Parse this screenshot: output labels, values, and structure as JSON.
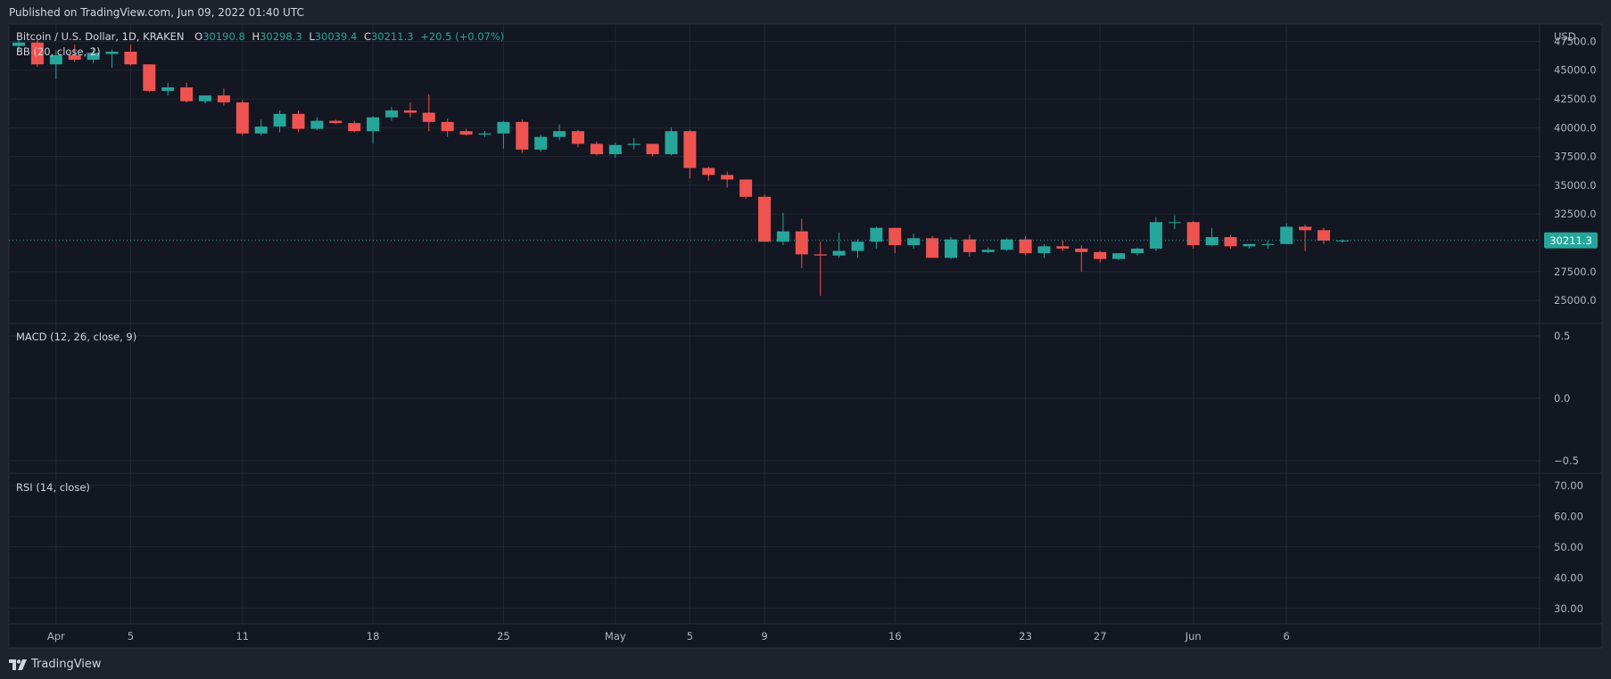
{
  "header": {
    "published": "Published on TradingView.com, Jun 09, 2022 01:40 UTC"
  },
  "legend": {
    "symbol": "Bitcoin / U.S. Dollar, 1D, KRAKEN",
    "o_label": "O",
    "o": "30190.8",
    "h_label": "H",
    "h": "30298.3",
    "l_label": "L",
    "l": "30039.4",
    "c_label": "C",
    "c": "30211.3",
    "change": "+20.5 (+0.07%)",
    "bb": "BB (20, close, 2)",
    "macd": "MACD (12, 26, close, 9)",
    "rsi": "RSI (14, close)"
  },
  "footer": {
    "brand": "TradingView",
    "brand_icon": "tradingview-logo-icon"
  },
  "colors": {
    "up": "#26a69a",
    "down": "#ef5350",
    "background": "#131722",
    "frame": "#1e222d",
    "grid": "#232733",
    "text": "#d1d4dc"
  },
  "chart_data": {
    "type": "candlestick",
    "currency": "USD",
    "last_price_label": "30211.3",
    "last_price": 30211.3,
    "price_axis": {
      "ticks": [
        "47500.0",
        "45000.0",
        "42500.0",
        "40000.0",
        "37500.0",
        "35000.0",
        "32500.0",
        "27500.0",
        "25000.0"
      ],
      "range": [
        23000,
        49000
      ]
    },
    "macd_axis": {
      "ticks": [
        "0.5",
        "0.0",
        "−0.5"
      ],
      "range": [
        -0.6,
        0.6
      ]
    },
    "rsi_axis": {
      "ticks": [
        "70.00",
        "60.00",
        "50.00",
        "40.00",
        "30.00"
      ],
      "range": [
        25,
        74
      ]
    },
    "x_labels": [
      "Apr",
      "5",
      "11",
      "18",
      "25",
      "May",
      "5",
      "9",
      "16",
      "23",
      "27",
      "Jun",
      "6"
    ],
    "x_label_dates": [
      "2022-04-01",
      "2022-04-05",
      "2022-04-11",
      "2022-04-18",
      "2022-04-25",
      "2022-05-01",
      "2022-05-05",
      "2022-05-09",
      "2022-05-16",
      "2022-05-23",
      "2022-05-27",
      "2022-06-01",
      "2022-06-06"
    ],
    "first_date": "2022-03-30",
    "candles": [
      {
        "d": "2022-03-30",
        "o": 47100,
        "h": 47700,
        "l": 46600,
        "c": 47400
      },
      {
        "d": "2022-03-31",
        "o": 47400,
        "h": 47600,
        "l": 45300,
        "c": 45500
      },
      {
        "d": "2022-04-01",
        "o": 45500,
        "h": 46700,
        "l": 44200,
        "c": 46300
      },
      {
        "d": "2022-04-02",
        "o": 46300,
        "h": 47200,
        "l": 45700,
        "c": 45900
      },
      {
        "d": "2022-04-03",
        "o": 45900,
        "h": 47000,
        "l": 45600,
        "c": 46500
      },
      {
        "d": "2022-04-04",
        "o": 46400,
        "h": 46800,
        "l": 45200,
        "c": 46600
      },
      {
        "d": "2022-04-05",
        "o": 46600,
        "h": 47200,
        "l": 45400,
        "c": 45500
      },
      {
        "d": "2022-04-06",
        "o": 45500,
        "h": 45500,
        "l": 43100,
        "c": 43200
      },
      {
        "d": "2022-04-07",
        "o": 43200,
        "h": 43900,
        "l": 42800,
        "c": 43500
      },
      {
        "d": "2022-04-08",
        "o": 43500,
        "h": 43900,
        "l": 42200,
        "c": 42300
      },
      {
        "d": "2022-04-09",
        "o": 42300,
        "h": 42800,
        "l": 42100,
        "c": 42800
      },
      {
        "d": "2022-04-10",
        "o": 42800,
        "h": 43400,
        "l": 41900,
        "c": 42200
      },
      {
        "d": "2022-04-11",
        "o": 42200,
        "h": 42400,
        "l": 39300,
        "c": 39500
      },
      {
        "d": "2022-04-12",
        "o": 39500,
        "h": 40700,
        "l": 39300,
        "c": 40100
      },
      {
        "d": "2022-04-13",
        "o": 40100,
        "h": 41500,
        "l": 39600,
        "c": 41200
      },
      {
        "d": "2022-04-14",
        "o": 41200,
        "h": 41500,
        "l": 39600,
        "c": 39900
      },
      {
        "d": "2022-04-15",
        "o": 39900,
        "h": 40900,
        "l": 39800,
        "c": 40600
      },
      {
        "d": "2022-04-16",
        "o": 40600,
        "h": 40700,
        "l": 40300,
        "c": 40400
      },
      {
        "d": "2022-04-17",
        "o": 40400,
        "h": 40600,
        "l": 39600,
        "c": 39700
      },
      {
        "d": "2022-04-18",
        "o": 39700,
        "h": 41000,
        "l": 38600,
        "c": 40900
      },
      {
        "d": "2022-04-19",
        "o": 40900,
        "h": 41800,
        "l": 40600,
        "c": 41500
      },
      {
        "d": "2022-04-20",
        "o": 41500,
        "h": 42200,
        "l": 40900,
        "c": 41300
      },
      {
        "d": "2022-04-21",
        "o": 41300,
        "h": 42900,
        "l": 39700,
        "c": 40500
      },
      {
        "d": "2022-04-22",
        "o": 40500,
        "h": 40800,
        "l": 39200,
        "c": 39700
      },
      {
        "d": "2022-04-23",
        "o": 39700,
        "h": 39900,
        "l": 39300,
        "c": 39400
      },
      {
        "d": "2022-04-24",
        "o": 39400,
        "h": 39700,
        "l": 39200,
        "c": 39500
      },
      {
        "d": "2022-04-25",
        "o": 39500,
        "h": 40600,
        "l": 38200,
        "c": 40500
      },
      {
        "d": "2022-04-26",
        "o": 40500,
        "h": 40700,
        "l": 37800,
        "c": 38100
      },
      {
        "d": "2022-04-27",
        "o": 38100,
        "h": 39400,
        "l": 37900,
        "c": 39200
      },
      {
        "d": "2022-04-28",
        "o": 39200,
        "h": 40300,
        "l": 38900,
        "c": 39700
      },
      {
        "d": "2022-04-29",
        "o": 39700,
        "h": 39800,
        "l": 38300,
        "c": 38600
      },
      {
        "d": "2022-04-30",
        "o": 38600,
        "h": 38800,
        "l": 37600,
        "c": 37700
      },
      {
        "d": "2022-05-01",
        "o": 37700,
        "h": 38700,
        "l": 37400,
        "c": 38500
      },
      {
        "d": "2022-05-02",
        "o": 38500,
        "h": 39100,
        "l": 38100,
        "c": 38600
      },
      {
        "d": "2022-05-03",
        "o": 38600,
        "h": 38600,
        "l": 37500,
        "c": 37700
      },
      {
        "d": "2022-05-04",
        "o": 37700,
        "h": 40000,
        "l": 37600,
        "c": 39700
      },
      {
        "d": "2022-05-05",
        "o": 39700,
        "h": 39800,
        "l": 35600,
        "c": 36500
      },
      {
        "d": "2022-05-06",
        "o": 36500,
        "h": 36600,
        "l": 35400,
        "c": 35900
      },
      {
        "d": "2022-05-07",
        "o": 35900,
        "h": 36200,
        "l": 34800,
        "c": 35500
      },
      {
        "d": "2022-05-08",
        "o": 35500,
        "h": 35500,
        "l": 33800,
        "c": 34000
      },
      {
        "d": "2022-05-09",
        "o": 34000,
        "h": 34200,
        "l": 30100,
        "c": 30100
      },
      {
        "d": "2022-05-10",
        "o": 30100,
        "h": 32600,
        "l": 29800,
        "c": 31000
      },
      {
        "d": "2022-05-11",
        "o": 31000,
        "h": 32100,
        "l": 27800,
        "c": 29000
      },
      {
        "d": "2022-05-12",
        "o": 29000,
        "h": 30100,
        "l": 25400,
        "c": 28900
      },
      {
        "d": "2022-05-13",
        "o": 28900,
        "h": 30900,
        "l": 28700,
        "c": 29300
      },
      {
        "d": "2022-05-14",
        "o": 29300,
        "h": 30300,
        "l": 28700,
        "c": 30100
      },
      {
        "d": "2022-05-15",
        "o": 30100,
        "h": 31400,
        "l": 29500,
        "c": 31300
      },
      {
        "d": "2022-05-16",
        "o": 31300,
        "h": 31300,
        "l": 29100,
        "c": 29800
      },
      {
        "d": "2022-05-17",
        "o": 29800,
        "h": 30800,
        "l": 29500,
        "c": 30400
      },
      {
        "d": "2022-05-18",
        "o": 30400,
        "h": 30600,
        "l": 28700,
        "c": 28700
      },
      {
        "d": "2022-05-19",
        "o": 28700,
        "h": 30500,
        "l": 28600,
        "c": 30300
      },
      {
        "d": "2022-05-20",
        "o": 30300,
        "h": 30700,
        "l": 28800,
        "c": 29200
      },
      {
        "d": "2022-05-21",
        "o": 29200,
        "h": 29600,
        "l": 29100,
        "c": 29400
      },
      {
        "d": "2022-05-22",
        "o": 29400,
        "h": 30400,
        "l": 29300,
        "c": 30300
      },
      {
        "d": "2022-05-23",
        "o": 30300,
        "h": 30600,
        "l": 28900,
        "c": 29100
      },
      {
        "d": "2022-05-24",
        "o": 29100,
        "h": 29900,
        "l": 28700,
        "c": 29700
      },
      {
        "d": "2022-05-25",
        "o": 29700,
        "h": 30200,
        "l": 29300,
        "c": 29500
      },
      {
        "d": "2022-05-26",
        "o": 29500,
        "h": 29800,
        "l": 27500,
        "c": 29200
      },
      {
        "d": "2022-05-27",
        "o": 29200,
        "h": 29300,
        "l": 28300,
        "c": 28600
      },
      {
        "d": "2022-05-28",
        "o": 28600,
        "h": 29100,
        "l": 28500,
        "c": 29100
      },
      {
        "d": "2022-05-29",
        "o": 29100,
        "h": 29600,
        "l": 28900,
        "c": 29500
      },
      {
        "d": "2022-05-30",
        "o": 29500,
        "h": 32200,
        "l": 29300,
        "c": 31800
      },
      {
        "d": "2022-05-31",
        "o": 31800,
        "h": 32400,
        "l": 31200,
        "c": 31800
      },
      {
        "d": "2022-06-01",
        "o": 31800,
        "h": 31900,
        "l": 29500,
        "c": 29800
      },
      {
        "d": "2022-06-02",
        "o": 29800,
        "h": 31300,
        "l": 29700,
        "c": 30500
      },
      {
        "d": "2022-06-03",
        "o": 30500,
        "h": 30700,
        "l": 29500,
        "c": 29700
      },
      {
        "d": "2022-06-04",
        "o": 29700,
        "h": 29900,
        "l": 29500,
        "c": 29900
      },
      {
        "d": "2022-06-05",
        "o": 29900,
        "h": 30200,
        "l": 29500,
        "c": 29900
      },
      {
        "d": "2022-06-06",
        "o": 29900,
        "h": 31700,
        "l": 29900,
        "c": 31400
      },
      {
        "d": "2022-06-07",
        "o": 31400,
        "h": 31600,
        "l": 29300,
        "c": 31100
      },
      {
        "d": "2022-06-08",
        "o": 31100,
        "h": 31300,
        "l": 29900,
        "c": 30200
      },
      {
        "d": "2022-06-09",
        "o": 30190.8,
        "h": 30298.3,
        "l": 30039.4,
        "c": 30211.3
      }
    ]
  }
}
